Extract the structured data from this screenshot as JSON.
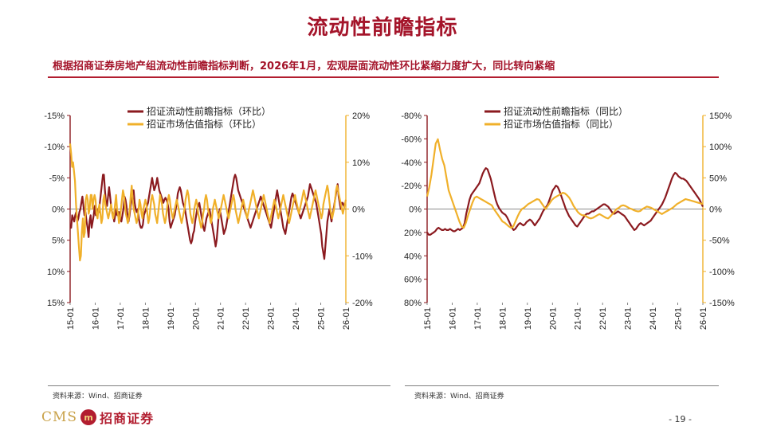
{
  "page": {
    "title": "流动性前瞻指标",
    "subtitle": "根据招商证券房地产组流动性前瞻指标判断，2026年1月，宏观层面流动性环比紧缩力度扩大，同比转向紧缩",
    "source_left": "资料来源：Wind、招商证券",
    "source_right": "资料来源：Wind、招商证券",
    "logo_latin": "CMS",
    "logo_emblem": "m",
    "logo_cn": "招商证券",
    "page_number": "- 19 -"
  },
  "colors": {
    "red": "#8b1a1f",
    "gold": "#f0b02a",
    "accent": "#b21d2f"
  },
  "chart_data": [
    {
      "type": "line",
      "x_ticks": [
        "15-01",
        "16-01",
        "17-01",
        "18-01",
        "19-01",
        "20-01",
        "21-01",
        "22-01",
        "23-01",
        "24-01",
        "25-01",
        "26-01"
      ],
      "x_range": [
        "2015-01",
        "2026-01"
      ],
      "left_axis": {
        "ticks": [
          "-15%",
          "-10%",
          "-5%",
          "0%",
          "5%",
          "10%",
          "15%"
        ],
        "range": [
          15,
          -15
        ],
        "inverted": true
      },
      "right_axis": {
        "ticks": [
          "20%",
          "10%",
          "0%",
          "-10%",
          "-20%"
        ],
        "range": [
          -20,
          20
        ]
      },
      "series": [
        {
          "name": "招证流动性前瞻指标（环比）",
          "axis": "left",
          "color": "#8b1a1f",
          "values": [
            -3,
            -3,
            -1,
            -1.5,
            -2,
            -1,
            -0.5,
            -2,
            -1.5,
            -0.5,
            0,
            1,
            2,
            0.5,
            -1,
            -0.5,
            -2,
            -3,
            -4.5,
            -2,
            -1,
            -3,
            -2,
            -1,
            0.5,
            -1,
            -0.5,
            0,
            -0.5,
            1,
            2.5,
            4,
            5.5,
            5.5,
            3,
            1,
            0.5,
            2,
            3.5,
            2,
            0.5,
            -0.5,
            -1,
            -2,
            -1,
            0,
            -1,
            -0.5,
            -0.5,
            -1.5,
            -2,
            -1,
            0,
            2,
            1.5,
            0.5,
            -1,
            -2,
            -1,
            0.5,
            1.5,
            3,
            3,
            1,
            0,
            -0.5,
            0,
            -1.5,
            -2.5,
            -3,
            -3,
            -2.5,
            -1,
            -0.5,
            0,
            0.5,
            1,
            2,
            3,
            4,
            5,
            4,
            3,
            3.5,
            4,
            5,
            4,
            3,
            2.5,
            2,
            1.5,
            1,
            1.5,
            1.8,
            1.5,
            1,
            0,
            -2,
            -3,
            -2.5,
            -2,
            -1.5,
            -1,
            0,
            1,
            2.5,
            3,
            3.5,
            3,
            2,
            1,
            0.5,
            0,
            -1,
            -2,
            -3,
            -4,
            -5,
            -5.5,
            -5,
            -4,
            -3.5,
            -2,
            -1,
            0,
            0.5,
            1,
            0,
            -1,
            -2,
            -3,
            -3.5,
            -2.5,
            -1.5,
            -1,
            -0.5,
            0,
            -1,
            -2,
            -3,
            -4,
            -5,
            -6,
            -5,
            -3,
            -1,
            0,
            -1,
            -2,
            -3,
            -4,
            -3.5,
            -3,
            -2,
            -1,
            0,
            1,
            2,
            3,
            4,
            5,
            5.5,
            5,
            4,
            3,
            2.5,
            2,
            1.5,
            1,
            0.5,
            0,
            -0.5,
            -1,
            -1.5,
            -2,
            -2.5,
            -3,
            -2.5,
            -2,
            -1.5,
            -1,
            -0.5,
            0,
            0.5,
            1,
            1.5,
            2,
            1.5,
            1,
            0.5,
            0,
            -0.5,
            -1,
            -1.5,
            -2,
            -2.5,
            -3,
            -2,
            -1,
            0,
            1,
            2,
            3,
            2,
            1,
            0,
            -1,
            -2,
            -3,
            -3.5,
            -4,
            -3,
            -2,
            -1,
            0,
            1,
            2,
            2.5,
            2,
            1.5,
            1,
            0.5,
            0,
            -0.5,
            -1,
            -1.5,
            -1,
            -0.5,
            0,
            0.5,
            1,
            1.5,
            2,
            3,
            4,
            3.5,
            3,
            2.5,
            2,
            1.5,
            1,
            0,
            -1,
            -2,
            -3,
            -4,
            -6,
            -7,
            -8,
            -6,
            -4,
            -2,
            -1,
            0,
            -1,
            -2,
            -1,
            0,
            1,
            2,
            3,
            4,
            2,
            1,
            0,
            1,
            1,
            0.5,
            0.8,
            0.8
          ]
        },
        {
          "name": "招证市场估值指标（环比）",
          "axis": "right",
          "color": "#f0b02a",
          "values": [
            14,
            12,
            9,
            10,
            8,
            6,
            1,
            -2,
            -5,
            -8,
            -11,
            -10,
            -5,
            -2,
            -6,
            -5,
            2,
            3,
            2,
            -1,
            0,
            3,
            3,
            0,
            2,
            3,
            2,
            -1,
            -2,
            0,
            1,
            -1,
            -3,
            -2,
            2,
            3,
            1,
            0,
            -1,
            -2,
            -1,
            0,
            1,
            -1,
            -2,
            -1,
            1,
            3,
            0,
            -1,
            -3,
            -2,
            0,
            2,
            4,
            3,
            1,
            -1,
            -2,
            -3,
            -2,
            0,
            3,
            5,
            2,
            0,
            -1,
            -2,
            -3,
            -2,
            0,
            2,
            1,
            -1,
            -2,
            0,
            1,
            2,
            1,
            -1,
            -3,
            -2,
            0,
            2,
            3,
            2,
            1,
            -1,
            -2,
            -3,
            -1,
            1,
            3,
            2,
            1,
            -1,
            -2,
            -3,
            -2,
            0,
            2,
            3,
            2,
            0,
            -1,
            -2,
            -1,
            0,
            1,
            2,
            1,
            0,
            -1,
            -2,
            -3,
            -2,
            -1,
            0,
            2,
            3,
            4,
            3,
            1,
            -1,
            -2,
            -3,
            -2,
            0,
            1,
            2,
            1,
            -1,
            -2,
            -3,
            -4,
            -3,
            -1,
            0,
            2,
            3,
            2,
            0,
            -1,
            -2,
            -3,
            -2,
            0,
            1,
            2,
            1,
            0,
            -1,
            -2,
            -1,
            0,
            1,
            2,
            3,
            2,
            1,
            0,
            -1,
            -2,
            -1,
            0,
            1,
            2,
            3,
            2,
            0,
            -1,
            -2,
            -3,
            -2,
            -1,
            0,
            1,
            2,
            1,
            0,
            -1,
            -2,
            -1,
            0,
            1,
            2,
            3,
            4,
            3,
            2,
            1,
            0,
            -1,
            -2,
            -1,
            0,
            1,
            2,
            3,
            2,
            1,
            0,
            -1,
            -2,
            -3,
            -2,
            -1,
            0,
            1,
            2,
            1,
            0,
            -1,
            -2,
            -1,
            0,
            1,
            2,
            3,
            2,
            1,
            0,
            -1,
            -2,
            -3,
            -2,
            -1,
            0,
            1,
            2,
            3,
            2,
            1,
            0,
            -1,
            0,
            1,
            2,
            3,
            4,
            3,
            2,
            1,
            0,
            -1,
            -2,
            -1,
            0,
            1,
            2,
            3,
            4,
            3,
            2,
            1,
            0,
            -1,
            -2,
            -1,
            1,
            2,
            3,
            4,
            5,
            4,
            2,
            0,
            -1,
            -2,
            -1,
            0,
            2,
            4,
            5,
            4,
            3,
            2,
            1,
            0,
            -1,
            0,
            1,
            2
          ]
        }
      ]
    },
    {
      "type": "line",
      "x_ticks": [
        "15-01",
        "16-01",
        "17-01",
        "18-01",
        "19-01",
        "20-01",
        "21-01",
        "22-01",
        "23-01",
        "24-01",
        "25-01",
        "26-01"
      ],
      "x_range": [
        "2015-01",
        "2026-01"
      ],
      "left_axis": {
        "ticks": [
          "-80%",
          "-60%",
          "-40%",
          "-20%",
          "0%",
          "20%",
          "40%",
          "60%",
          "80%"
        ],
        "range": [
          80,
          -80
        ],
        "inverted": true
      },
      "right_axis": {
        "ticks": [
          "150%",
          "100%",
          "50%",
          "0%",
          "-50%",
          "-100%",
          "-150%"
        ],
        "range": [
          -150,
          150
        ]
      },
      "series": [
        {
          "name": "招证流动性前瞻指标（同比）",
          "axis": "left",
          "color": "#8b1a1f",
          "values": [
            -20,
            -22,
            -22,
            -21,
            -20,
            -19,
            -17,
            -16,
            -17,
            -18,
            -18,
            -17,
            -18,
            -18,
            -17,
            -18,
            -19,
            -19,
            -18,
            -17,
            -18,
            -17,
            -16,
            -12,
            -4,
            2,
            8,
            12,
            14,
            16,
            18,
            20,
            22,
            26,
            30,
            33,
            35,
            34,
            30,
            26,
            20,
            14,
            8,
            4,
            1,
            -1,
            -3,
            -4,
            -5,
            -7,
            -10,
            -13,
            -16,
            -18,
            -17,
            -15,
            -13,
            -12,
            -13,
            -14,
            -13,
            -11,
            -10,
            -9,
            -10,
            -12,
            -14,
            -12,
            -10,
            -8,
            -5,
            -2,
            0,
            2,
            4,
            8,
            12,
            16,
            18,
            20,
            19,
            16,
            12,
            8,
            4,
            0,
            -3,
            -6,
            -8,
            -10,
            -12,
            -14,
            -15,
            -13,
            -11,
            -9,
            -7,
            -5,
            -4,
            -4,
            -3,
            -2,
            -2,
            -1,
            0,
            1,
            2,
            3,
            4,
            4,
            3,
            2,
            0,
            -2,
            -4,
            -4,
            -3,
            -2,
            -3,
            -4,
            -5,
            -6,
            -8,
            -10,
            -12,
            -14,
            -16,
            -18,
            -17,
            -15,
            -13,
            -12,
            -13,
            -14,
            -13,
            -12,
            -11,
            -10,
            -8,
            -6,
            -4,
            -2,
            0,
            2,
            4,
            7,
            10,
            14,
            18,
            22,
            26,
            29,
            31,
            30,
            28,
            27,
            26,
            26,
            25,
            24,
            22,
            20,
            18,
            16,
            14,
            12,
            10,
            8,
            5,
            2
          ]
        },
        {
          "name": "招证市场估值指标（同比）",
          "axis": "right",
          "color": "#f0b02a",
          "values": [
            20,
            35,
            55,
            80,
            105,
            112,
            95,
            80,
            70,
            50,
            30,
            20,
            10,
            0,
            -10,
            -20,
            -28,
            -30,
            -22,
            -10,
            0,
            10,
            18,
            20,
            18,
            16,
            14,
            12,
            10,
            8,
            6,
            0,
            -5,
            -10,
            -15,
            -20,
            -22,
            -25,
            -28,
            -30,
            -28,
            -20,
            -12,
            -5,
            0,
            2,
            5,
            8,
            10,
            12,
            14,
            16,
            15,
            10,
            5,
            0,
            5,
            10,
            15,
            18,
            20,
            22,
            24,
            26,
            25,
            22,
            18,
            12,
            5,
            0,
            -5,
            -8,
            -10,
            -10,
            -12,
            -14,
            -15,
            -14,
            -12,
            -10,
            -8,
            -10,
            -12,
            -14,
            -15,
            -12,
            -8,
            -4,
            0,
            2,
            5,
            6,
            5,
            3,
            1,
            0,
            -2,
            -3,
            -4,
            -3,
            0,
            2,
            4,
            3,
            2,
            0,
            -2,
            -4,
            -6,
            -8,
            -6,
            -4,
            -2,
            0,
            2,
            5,
            8,
            10,
            12,
            14,
            16,
            15,
            14,
            13,
            12,
            11,
            10,
            9,
            8
          ]
        }
      ]
    }
  ]
}
